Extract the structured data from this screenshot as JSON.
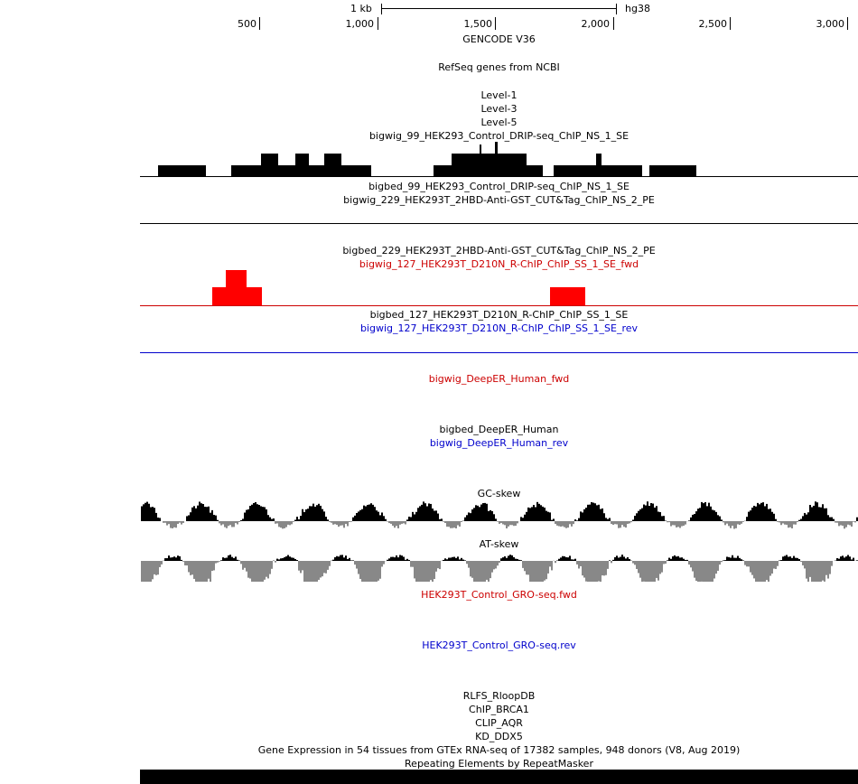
{
  "scale": {
    "length_label": "1 kb",
    "assembly": "hg38"
  },
  "ruler": {
    "labels": [
      "500",
      "1,000",
      "1,500",
      "2,000",
      "2,500",
      "3,000"
    ]
  },
  "tracks": {
    "gencode": "GENCODE V36",
    "refseq": "RefSeq genes from NCBI",
    "level1": "Level-1",
    "level3": "Level-3",
    "level5": "Level-5",
    "bw99": "bigwig_99_HEK293_Control_DRIP-seq_ChIP_NS_1_SE",
    "bb99": "bigbed_99_HEK293_Control_DRIP-seq_ChIP_NS_1_SE",
    "bw229": "bigwig_229_HEK293T_2HBD-Anti-GST_CUT&Tag_ChIP_NS_2_PE",
    "bb229": "bigbed_229_HEK293T_2HBD-Anti-GST_CUT&Tag_ChIP_NS_2_PE",
    "bw127fwd": "bigwig_127_HEK293T_D210N_R-ChIP_ChIP_SS_1_SE_fwd",
    "bb127": "bigbed_127_HEK293T_D210N_R-ChIP_ChIP_SS_1_SE",
    "bw127rev": "bigwig_127_HEK293T_D210N_R-ChIP_ChIP_SS_1_SE_rev",
    "deeper_fwd": "bigwig_DeepER_Human_fwd",
    "deeper_bb": "bigbed_DeepER_Human",
    "deeper_rev": "bigwig_DeepER_Human_rev",
    "gc_skew": "GC-skew",
    "at_skew": "AT-skew",
    "gro_fwd": "HEK293T_Control_GRO-seq.fwd",
    "gro_rev": "HEK293T_Control_GRO-seq.rev",
    "rlfs": "RLFS_RloopDB",
    "brca1": "ChIP_BRCA1",
    "clip_aqr": "CLIP_AQR",
    "kd_ddx5": "KD_DDX5",
    "gtex": "Gene Expression in 54 tissues from GTEx RNA-seq of 17382 samples, 948 donors (V8, Aug 2019)",
    "repeatmasker": "Repeating Elements by RepeatMasker"
  },
  "colors": {
    "fwd": "#cc0000",
    "rev": "#0000cc",
    "signal": "#000000",
    "negative": "#888888",
    "peak": "#ff0000"
  }
}
